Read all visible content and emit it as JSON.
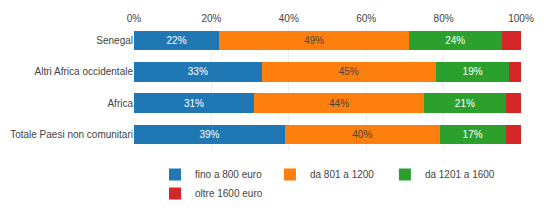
{
  "chart_data": {
    "type": "bar",
    "orientation": "horizontal",
    "stacked": true,
    "categories": [
      "Senegal",
      "Altri Africa occidentale",
      "Africa",
      "Totale Paesi non comunitari"
    ],
    "series": [
      {
        "name": "fino a 800 euro",
        "values": [
          22,
          33,
          31,
          39
        ],
        "value_labels": [
          "22%",
          "33%",
          "31%",
          "39%"
        ]
      },
      {
        "name": "da 801 a 1200",
        "values": [
          49,
          45,
          44,
          40
        ],
        "value_labels": [
          "49%",
          "45%",
          "44%",
          "40%"
        ]
      },
      {
        "name": "da 1201 a 1600",
        "values": [
          24,
          19,
          21,
          17
        ],
        "value_labels": [
          "24%",
          "19%",
          "21%",
          "17%"
        ]
      },
      {
        "name": "oltre 1600 euro",
        "values": [
          5,
          3,
          4,
          4
        ]
      }
    ],
    "data_labels": true,
    "xlim": [
      0,
      100
    ],
    "xticks": [
      {
        "value": 0,
        "label": "0%"
      },
      {
        "value": 20,
        "label": "20%"
      },
      {
        "value": 40,
        "label": "40%"
      },
      {
        "value": 60,
        "label": "60%"
      },
      {
        "value": 80,
        "label": "80%"
      },
      {
        "value": 100,
        "label": "100%"
      }
    ],
    "grid": true,
    "legend": "bottom"
  }
}
